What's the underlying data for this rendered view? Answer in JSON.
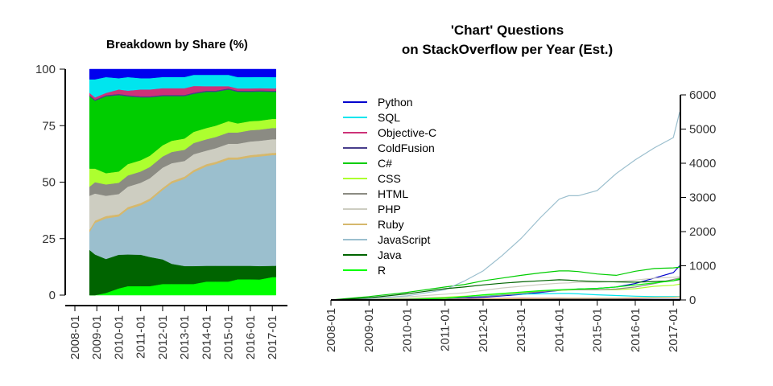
{
  "chart_data": [
    {
      "type": "area",
      "title": "Breakdown by Share (%)",
      "xlabel": "",
      "ylabel": "",
      "xlim": [
        "2008-01",
        "2017-04"
      ],
      "ylim": [
        0,
        100
      ],
      "yticks": [
        0,
        25,
        50,
        75,
        100
      ],
      "xticks": [
        "2008-01",
        "2009-01",
        "2010-01",
        "2011-01",
        "2012-01",
        "2013-01",
        "2014-01",
        "2015-01",
        "2016-01",
        "2017-01"
      ],
      "stack_order_bottom_to_top": [
        "R",
        "Java",
        "JavaScript",
        "Ruby",
        "PHP",
        "HTML",
        "CSS",
        "C#",
        "ColdFusion",
        "Objective-C",
        "SQL",
        "Python"
      ],
      "x": [
        "2008-09",
        "2008-12",
        "2009-06",
        "2010-01",
        "2010-06",
        "2011-01",
        "2011-06",
        "2012-01",
        "2012-06",
        "2013-01",
        "2013-06",
        "2014-01",
        "2014-06",
        "2015-01",
        "2015-06",
        "2016-01",
        "2016-06",
        "2017-01",
        "2017-03"
      ],
      "series": [
        {
          "name": "R",
          "color": "#00ff00",
          "values": [
            0,
            0,
            1,
            3,
            4,
            4,
            4,
            5,
            5,
            5,
            5,
            6,
            6,
            6,
            7,
            7,
            7,
            8,
            8
          ]
        },
        {
          "name": "Java",
          "color": "#006400",
          "values": [
            20,
            18,
            15,
            15,
            14,
            14,
            13,
            11,
            9,
            8,
            8,
            7,
            7,
            7,
            6,
            6,
            6,
            5,
            5
          ]
        },
        {
          "name": "JavaScript",
          "color": "#9bbfce",
          "values": [
            8,
            14,
            18,
            17,
            20,
            22,
            25,
            31,
            36,
            39,
            42,
            44,
            45,
            47,
            47,
            48,
            49,
            49,
            49
          ]
        },
        {
          "name": "Ruby",
          "color": "#d6b86c",
          "values": [
            1,
            1,
            1,
            1,
            1,
            1,
            1,
            1,
            1,
            1,
            1,
            1,
            1,
            1,
            1,
            1,
            1,
            1,
            1
          ]
        },
        {
          "name": "PHP",
          "color": "#cdcdc1",
          "values": [
            15,
            12,
            9,
            9,
            9,
            9,
            9,
            9,
            8,
            7,
            7,
            6,
            6,
            6,
            6,
            6,
            6,
            6,
            6
          ]
        },
        {
          "name": "HTML",
          "color": "#8b8b83",
          "values": [
            4,
            5,
            5,
            5,
            5,
            5,
            5,
            5,
            5,
            5,
            5,
            5,
            5,
            5,
            5,
            5,
            5,
            5,
            5
          ]
        },
        {
          "name": "CSS",
          "color": "#adff2f",
          "values": [
            8,
            6,
            5,
            5,
            5,
            5,
            5,
            5,
            5,
            5,
            5,
            5,
            5,
            5,
            4,
            4,
            4,
            4,
            4
          ]
        },
        {
          "name": "C#",
          "color": "#00cd00",
          "values": [
            32,
            30,
            34,
            34,
            30,
            28,
            26,
            22,
            20,
            19,
            17,
            16,
            15,
            14,
            14,
            13,
            13,
            12,
            12
          ]
        },
        {
          "name": "ColdFusion",
          "color": "#483d8b",
          "values": [
            0.5,
            0.5,
            0.5,
            0.5,
            0.5,
            0.5,
            0.5,
            0.5,
            0.5,
            0.5,
            0.5,
            0.5,
            0.5,
            0.5,
            0.5,
            0.5,
            0.5,
            0.5,
            0.5
          ]
        },
        {
          "name": "Objective-C",
          "color": "#cd3278",
          "values": [
            1,
            1,
            1,
            2,
            2,
            3,
            3,
            3,
            3,
            3,
            3,
            2,
            2,
            1,
            1,
            1,
            1,
            1,
            1
          ]
        },
        {
          "name": "SQL",
          "color": "#00e5ee",
          "values": [
            6,
            8,
            7,
            5,
            6,
            5,
            5,
            5,
            5,
            5,
            5,
            5,
            5,
            5,
            5,
            5,
            5,
            5,
            5
          ]
        },
        {
          "name": "Python",
          "color": "#0000ee",
          "values": [
            4.5,
            4.5,
            3.5,
            4,
            3.5,
            4,
            4,
            3.5,
            3.5,
            3.5,
            2.5,
            2.5,
            2.5,
            2.5,
            3.5,
            3.5,
            3.5,
            3.5,
            3.5
          ]
        }
      ]
    },
    {
      "type": "line",
      "title": "'Chart' Questions",
      "subtitle": "on StackOverflow per Year (Est.)",
      "xlabel": "",
      "ylabel": "",
      "xlim": [
        "2008-01",
        "2017-04"
      ],
      "ylim": [
        0,
        6000
      ],
      "yticks": [
        0,
        1000,
        2000,
        3000,
        4000,
        5000,
        6000
      ],
      "xticks": [
        "2008-01",
        "2009-01",
        "2010-01",
        "2011-01",
        "2012-01",
        "2013-01",
        "2014-01",
        "2015-01",
        "2016-01",
        "2017-01"
      ],
      "legend": "top-left",
      "x": [
        "2008-01",
        "2009-01",
        "2010-01",
        "2011-01",
        "2011-07",
        "2012-01",
        "2012-07",
        "2013-01",
        "2013-07",
        "2014-01",
        "2014-04",
        "2014-07",
        "2015-01",
        "2015-07",
        "2016-01",
        "2016-07",
        "2017-01",
        "2017-03"
      ],
      "series": [
        {
          "name": "Python",
          "color": "#0000cd",
          "values": [
            0,
            0,
            10,
            30,
            50,
            80,
            120,
            160,
            220,
            280,
            300,
            320,
            340,
            380,
            480,
            640,
            800,
            1000
          ]
        },
        {
          "name": "SQL",
          "color": "#00e5ee",
          "values": [
            0,
            10,
            30,
            60,
            80,
            110,
            150,
            170,
            180,
            190,
            190,
            180,
            150,
            130,
            110,
            100,
            100,
            100
          ]
        },
        {
          "name": "Objective-C",
          "color": "#cd3278",
          "values": [
            0,
            5,
            10,
            20,
            30,
            40,
            45,
            50,
            50,
            50,
            45,
            40,
            35,
            30,
            25,
            20,
            20,
            20
          ]
        },
        {
          "name": "ColdFusion",
          "color": "#483d8b",
          "values": [
            0,
            0,
            5,
            10,
            15,
            20,
            20,
            20,
            20,
            20,
            20,
            20,
            20,
            20,
            20,
            20,
            20,
            20
          ]
        },
        {
          "name": "C#",
          "color": "#00cd00",
          "values": [
            0,
            100,
            220,
            380,
            450,
            560,
            640,
            720,
            790,
            850,
            850,
            830,
            760,
            720,
            840,
            920,
            940,
            960
          ]
        },
        {
          "name": "CSS",
          "color": "#adff2f",
          "values": [
            0,
            15,
            40,
            80,
            110,
            140,
            180,
            220,
            250,
            280,
            290,
            300,
            300,
            300,
            330,
            400,
            430,
            460
          ]
        },
        {
          "name": "HTML",
          "color": "#8b8b83",
          "values": [
            0,
            10,
            30,
            60,
            80,
            100,
            140,
            190,
            240,
            290,
            300,
            300,
            300,
            320,
            380,
            480,
            600,
            640
          ]
        },
        {
          "name": "PHP",
          "color": "#cdcdc1",
          "values": [
            0,
            30,
            90,
            170,
            210,
            280,
            350,
            400,
            450,
            490,
            500,
            520,
            520,
            540,
            580,
            640,
            660,
            680
          ]
        },
        {
          "name": "Ruby",
          "color": "#d6b86c",
          "values": [
            0,
            5,
            10,
            20,
            25,
            30,
            35,
            40,
            45,
            50,
            50,
            50,
            50,
            50,
            60,
            70,
            80,
            90
          ]
        },
        {
          "name": "JavaScript",
          "color": "#9bbfce",
          "values": [
            0,
            40,
            120,
            300,
            550,
            850,
            1300,
            1800,
            2400,
            2950,
            3050,
            3050,
            3200,
            3700,
            4100,
            4450,
            4750,
            5500
          ]
        },
        {
          "name": "Java",
          "color": "#006400",
          "values": [
            0,
            60,
            180,
            330,
            380,
            440,
            490,
            530,
            560,
            590,
            580,
            560,
            540,
            530,
            520,
            540,
            560,
            600
          ]
        },
        {
          "name": "R",
          "color": "#00ff00",
          "values": [
            0,
            0,
            10,
            50,
            100,
            150,
            190,
            230,
            270,
            300,
            310,
            320,
            340,
            380,
            440,
            500,
            560,
            620
          ]
        }
      ]
    }
  ]
}
